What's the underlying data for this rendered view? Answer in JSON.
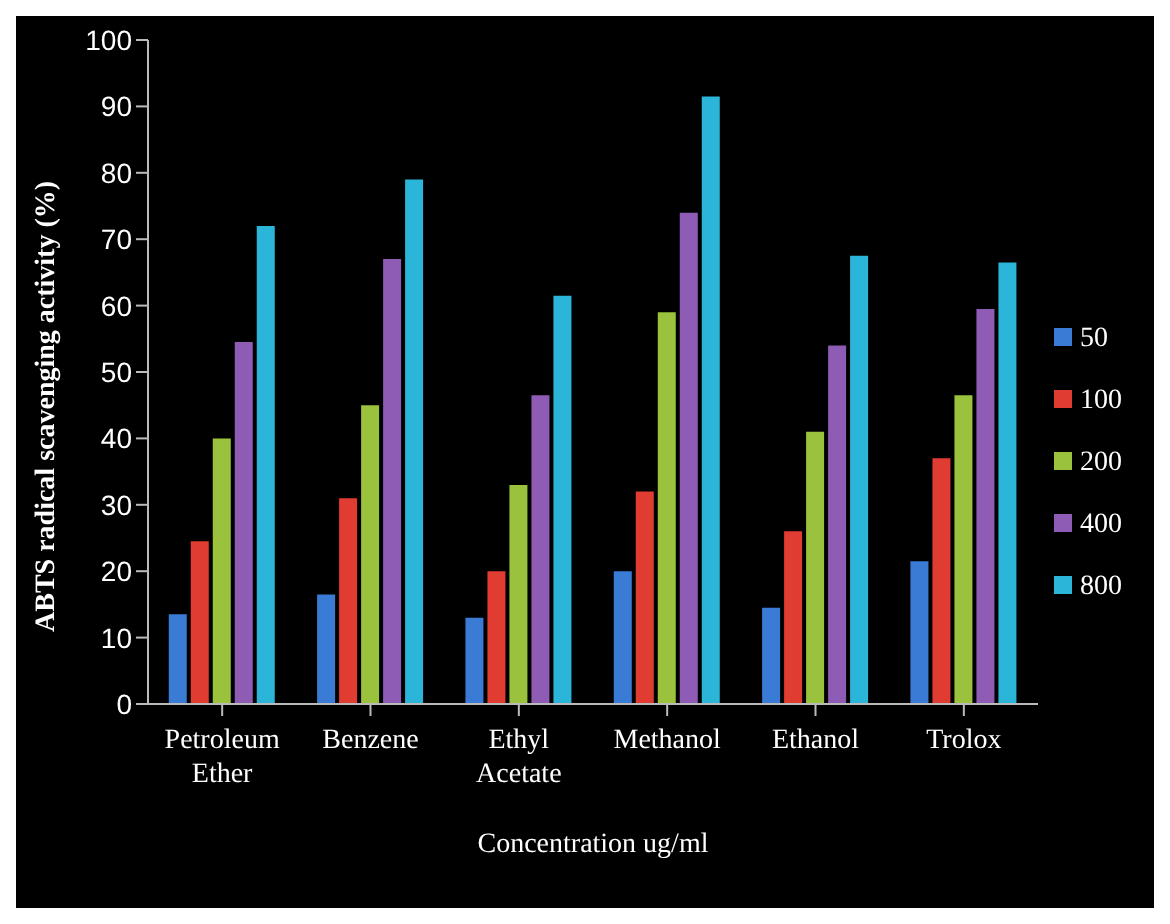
{
  "chart_data": {
    "type": "bar",
    "xlabel": "Concentration ug/ml",
    "ylabel": "ABTS radical scavenging activity (%)",
    "categories": [
      "Petroleum Ether",
      "Benzene",
      "Ethyl Acetate",
      "Methanol",
      "Ethanol",
      "Trolox"
    ],
    "series": [
      {
        "name": "50",
        "color": "#3a7bd5",
        "values": [
          13.5,
          16.5,
          13,
          20,
          14.5,
          21.5
        ]
      },
      {
        "name": "100",
        "color": "#e03c31",
        "values": [
          24.5,
          31,
          20,
          32,
          26,
          37
        ]
      },
      {
        "name": "200",
        "color": "#9bc23c",
        "values": [
          40,
          45,
          33,
          59,
          41,
          46.5
        ]
      },
      {
        "name": "400",
        "color": "#8e5bb5",
        "values": [
          54.5,
          67,
          46.5,
          74,
          54,
          59.5
        ]
      },
      {
        "name": "800",
        "color": "#2bb5d8",
        "values": [
          72,
          79,
          61.5,
          91.5,
          67.5,
          66.5
        ]
      }
    ],
    "ylim": [
      0,
      100
    ],
    "yticks": [
      0,
      10,
      20,
      30,
      40,
      50,
      60,
      70,
      80,
      90,
      100
    ],
    "grid": false,
    "legend": "right"
  }
}
